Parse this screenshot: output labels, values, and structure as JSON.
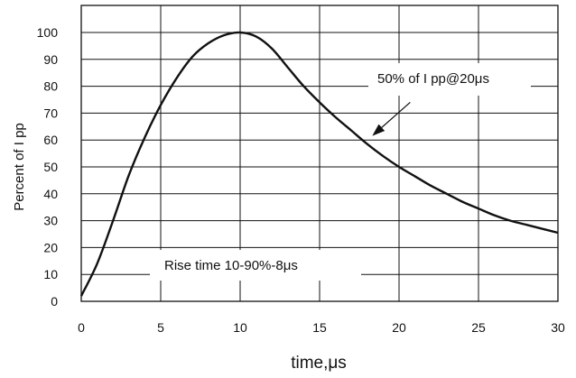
{
  "chart_data": {
    "type": "line",
    "title": "",
    "xlabel": "time,μs",
    "ylabel": "Percent of I pp",
    "xlim": [
      0,
      30
    ],
    "ylim": [
      0,
      100
    ],
    "x_ticks": [
      0,
      5,
      10,
      15,
      20,
      25,
      30
    ],
    "y_ticks": [
      0,
      10,
      20,
      30,
      40,
      50,
      60,
      70,
      80,
      90,
      100
    ],
    "grid": true,
    "legend": "none",
    "line_color": "#111111",
    "series": [
      {
        "x": [
          0,
          1,
          2,
          3,
          4,
          5,
          6,
          7,
          8,
          9,
          10,
          11,
          12,
          13,
          14,
          15,
          16,
          17,
          18,
          19,
          20,
          21,
          22,
          23,
          24,
          25,
          26,
          27,
          28,
          29,
          30
        ],
        "values": [
          2,
          14,
          30,
          47,
          61,
          73,
          83,
          91,
          96,
          99,
          100,
          98.5,
          94,
          87,
          80,
          74,
          68.5,
          63.5,
          58.5,
          54,
          50,
          46.5,
          43,
          40,
          37,
          34.5,
          32,
          30,
          28.5,
          27,
          25.5
        ]
      }
    ],
    "annotations": [
      {
        "text": "50% of I pp@20μs",
        "arrow_to": [
          18.4,
          62
        ],
        "arrow_from": [
          20.7,
          74
        ]
      },
      {
        "text": "Rise time 10-90%-8μs"
      }
    ]
  }
}
